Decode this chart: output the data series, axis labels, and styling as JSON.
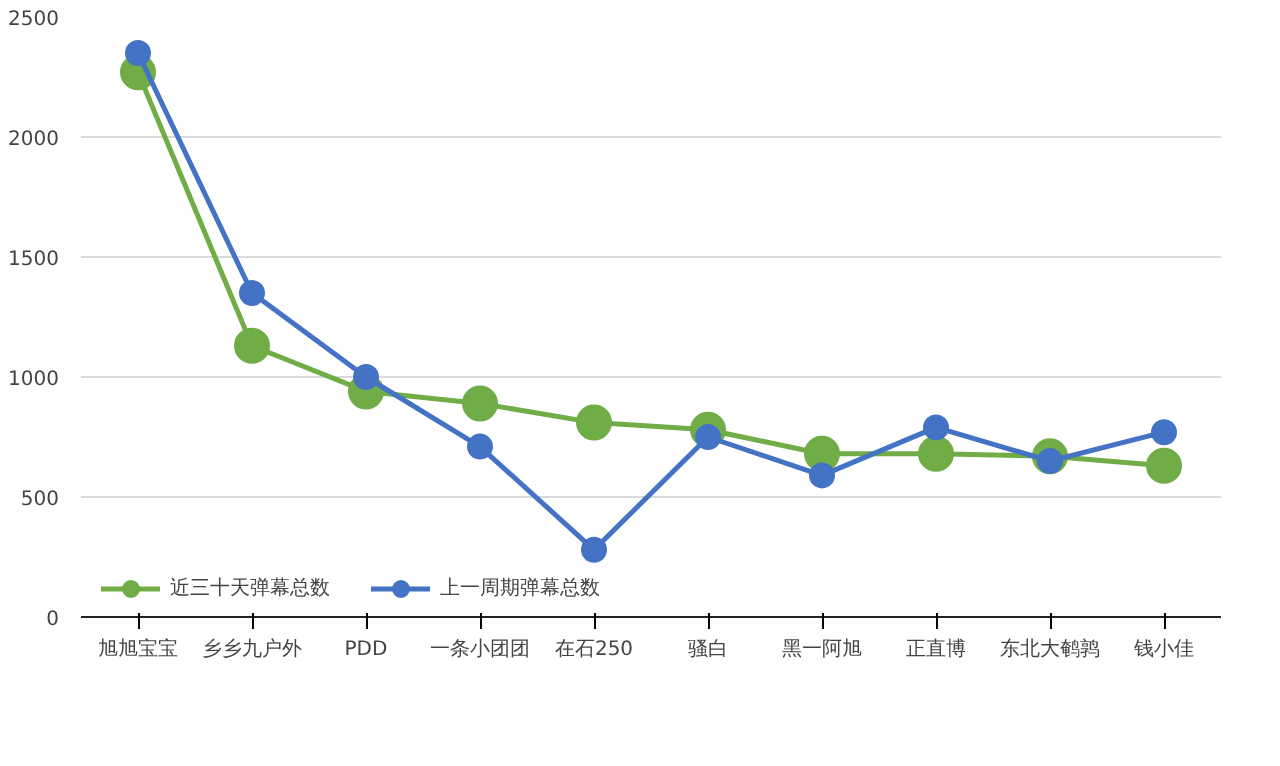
{
  "chart_data": {
    "type": "line",
    "categories": [
      "旭旭宝宝",
      "乡乡九户外",
      "PDD",
      "一条小团团",
      "在石250",
      "骚白",
      "黑一阿旭",
      "正直博",
      "东北大鹌鹑",
      "钱小佳"
    ],
    "series": [
      {
        "name": "近三十天弹幕总数",
        "color": "#70ad47",
        "values": [
          2270,
          1130,
          940,
          890,
          810,
          780,
          680,
          680,
          670,
          630
        ]
      },
      {
        "name": "上一周期弹幕总数",
        "color": "#4472c4",
        "values": [
          2350,
          1350,
          1000,
          710,
          280,
          750,
          590,
          790,
          650,
          770
        ]
      }
    ],
    "ylim": [
      0,
      2500
    ],
    "yticks": [
      0,
      500,
      1000,
      1500,
      2000,
      2500
    ],
    "grid": "y",
    "legend": "bottom",
    "marker": "circle",
    "line_style": "solid"
  }
}
